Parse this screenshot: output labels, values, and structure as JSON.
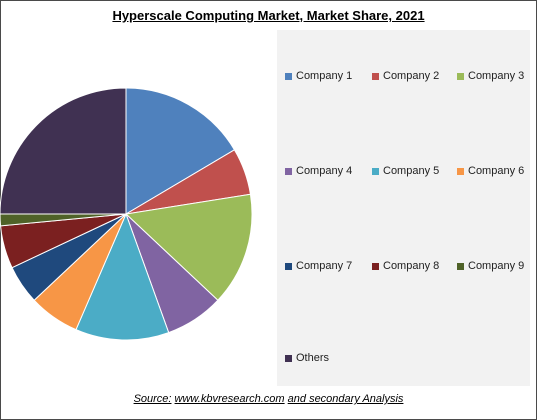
{
  "chart_data": {
    "type": "pie",
    "title": "Hyperscale Computing Market, Market Share, 2021",
    "slices": [
      {
        "label": "Company 1",
        "value": 16.5,
        "color": "#4f81bd"
      },
      {
        "label": "Company 2",
        "value": 6.0,
        "color": "#c0504d"
      },
      {
        "label": "Company 3",
        "value": 14.5,
        "color": "#9bbb59"
      },
      {
        "label": "Company 4",
        "value": 7.5,
        "color": "#8064a2"
      },
      {
        "label": "Company 5",
        "value": 12.0,
        "color": "#4bacc6"
      },
      {
        "label": "Company 6",
        "value": 6.5,
        "color": "#f79646"
      },
      {
        "label": "Company 7",
        "value": 5.0,
        "color": "#1f497d"
      },
      {
        "label": "Company 8",
        "value": 5.5,
        "color": "#7b2020"
      },
      {
        "label": "Company 9",
        "value": 1.5,
        "color": "#4f6228"
      },
      {
        "label": "Others",
        "value": 25.0,
        "color": "#403152"
      }
    ],
    "legend_position": "right"
  },
  "source": {
    "prefix": "Source:",
    "site": "www.kbvresearch.com",
    "suffix": "and secondary Analysis"
  }
}
